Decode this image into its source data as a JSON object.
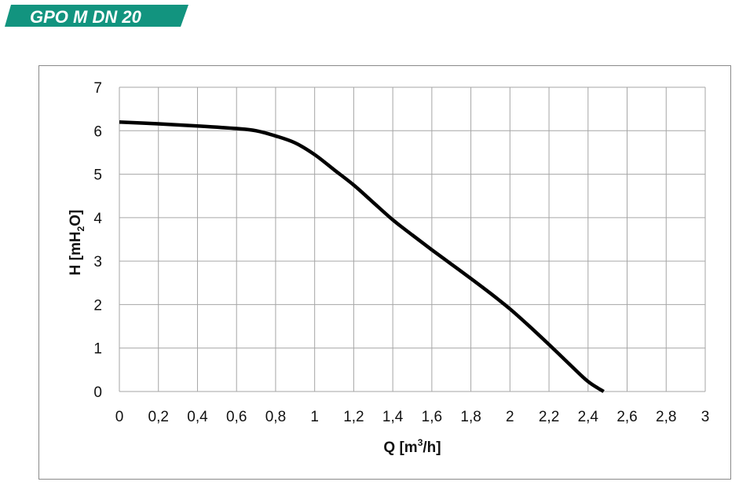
{
  "header": {
    "title": "GPO M DN 20",
    "accent_color": "#12947f"
  },
  "chart_data": {
    "type": "line",
    "title": "GPO M DN 20",
    "xlabel": "Q [m³/h]",
    "xlabel_parts": {
      "main": "Q [m",
      "sup": "3",
      "tail": "/h]"
    },
    "ylabel": "H [mH₂O]",
    "ylabel_parts": {
      "main": "H [mH",
      "sub": "2",
      "tail": "O]"
    },
    "xlim": [
      0,
      3
    ],
    "ylim": [
      0,
      7
    ],
    "x_ticks": [
      "0",
      "0,2",
      "0,4",
      "0,6",
      "0,8",
      "1",
      "1,2",
      "1,4",
      "1,6",
      "1,8",
      "2",
      "2,2",
      "2,4",
      "2,6",
      "2,8",
      "3"
    ],
    "y_ticks": [
      "0",
      "1",
      "2",
      "3",
      "4",
      "5",
      "6",
      "7"
    ],
    "grid": true,
    "line_color": "#000000",
    "series": [
      {
        "x": [
          0,
          0.2,
          0.4,
          0.6,
          0.7,
          0.8,
          0.9,
          1.0,
          1.1,
          1.2,
          1.3,
          1.4,
          1.5,
          1.6,
          1.7,
          1.8,
          1.9,
          2.0,
          2.1,
          2.2,
          2.3,
          2.4,
          2.48
        ],
        "y": [
          6.2,
          6.16,
          6.11,
          6.05,
          6.0,
          5.88,
          5.72,
          5.45,
          5.1,
          4.75,
          4.35,
          3.95,
          3.6,
          3.26,
          2.93,
          2.6,
          2.26,
          1.9,
          1.5,
          1.08,
          0.65,
          0.23,
          0.0
        ]
      }
    ]
  }
}
